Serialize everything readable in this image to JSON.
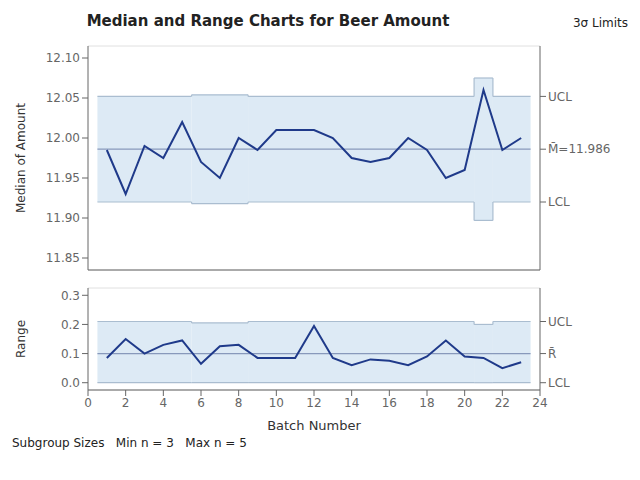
{
  "chart_data": [
    {
      "type": "line",
      "title": "Median and Range Charts for Beer Amount",
      "annotation": "3σ Limits",
      "ylabel": "Median of Amount",
      "x": [
        1,
        2,
        3,
        4,
        5,
        6,
        7,
        8,
        9,
        10,
        11,
        12,
        13,
        14,
        15,
        16,
        17,
        18,
        19,
        20,
        21,
        22,
        23
      ],
      "values": [
        11.985,
        11.93,
        11.99,
        11.975,
        12.02,
        11.97,
        11.95,
        12.0,
        11.985,
        12.01,
        12.01,
        12.01,
        12.0,
        11.975,
        11.97,
        11.975,
        12.0,
        11.985,
        11.95,
        11.96,
        12.06,
        11.985,
        12.0
      ],
      "color": "#1F3A8A",
      "xlim": [
        0,
        24
      ],
      "ylim": [
        11.835,
        12.115
      ],
      "yticks": [
        11.85,
        {
          "value": 11.9,
          "label": "11.90"
        },
        11.95,
        {
          "value": 12,
          "label": "12.00"
        },
        12.05,
        {
          "value": 12.1,
          "label": "12.10"
        }
      ],
      "y2lim": [
        11.835,
        12.115
      ],
      "y2ticks": [
        {
          "value": 12.052,
          "label": "UCL"
        },
        {
          "value": 11.986,
          "label": "M̄=11.986"
        },
        {
          "value": 11.92,
          "label": "LCL"
        }
      ],
      "center": 11.986,
      "center_color": "#8899BB",
      "limits": [
        {
          "x_start": 0.5,
          "x_end": 5.5,
          "ucl": 12.052,
          "lcl": 11.92
        },
        {
          "x_start": 5.5,
          "x_end": 8.5,
          "ucl": 12.054,
          "lcl": 11.918
        },
        {
          "x_start": 8.5,
          "x_end": 20.5,
          "ucl": 12.052,
          "lcl": 11.92
        },
        {
          "x_start": 20.5,
          "x_end": 21.5,
          "ucl": 12.075,
          "lcl": 11.897
        },
        {
          "x_start": 21.5,
          "x_end": 23.5,
          "ucl": 12.052,
          "lcl": 11.92
        }
      ],
      "limit_color": "#AABDD0",
      "fill_color": "#DDEAF5",
      "grid": "y",
      "tick_labels": "y"
    },
    {
      "type": "line",
      "annotation": "Subgroup Sizes   Min n = 3   Max n = 5",
      "xlabel": "Batch Number",
      "ylabel": "Range",
      "x": [
        1,
        2,
        3,
        4,
        5,
        6,
        7,
        8,
        9,
        10,
        11,
        12,
        13,
        14,
        15,
        16,
        17,
        18,
        19,
        20,
        21,
        22,
        23
      ],
      "values": [
        0.085,
        0.15,
        0.1,
        0.13,
        0.145,
        0.065,
        0.125,
        0.13,
        0.085,
        0.085,
        0.085,
        0.195,
        0.085,
        0.06,
        0.08,
        0.075,
        0.06,
        0.09,
        0.145,
        0.09,
        0.085,
        0.05,
        0.07
      ],
      "color": "#1F3A8A",
      "xlim": [
        0,
        24
      ],
      "xticks": [
        0,
        2,
        4,
        6,
        8,
        10,
        12,
        14,
        16,
        18,
        20,
        22,
        24
      ],
      "ylim": [
        -0.025,
        0.325
      ],
      "yticks": [
        {
          "value": 0,
          "label": "0.0"
        },
        0.1,
        0.2,
        0.3
      ],
      "y2lim": [
        -0.025,
        0.325
      ],
      "y2ticks": [
        {
          "value": 0.21,
          "label": "UCL"
        },
        {
          "value": 0.1,
          "label": "R̄"
        },
        {
          "value": 0,
          "label": "LCL"
        }
      ],
      "center": 0.1,
      "center_color": "#8899BB",
      "limits": [
        {
          "x_start": 0.5,
          "x_end": 5.5,
          "ucl": 0.21,
          "lcl": 0.0
        },
        {
          "x_start": 5.5,
          "x_end": 8.5,
          "ucl": 0.205,
          "lcl": 0.0
        },
        {
          "x_start": 8.5,
          "x_end": 20.5,
          "ucl": 0.21,
          "lcl": 0.0
        },
        {
          "x_start": 20.5,
          "x_end": 21.5,
          "ucl": 0.2,
          "lcl": 0.0
        },
        {
          "x_start": 21.5,
          "x_end": 23.5,
          "ucl": 0.21,
          "lcl": 0.0
        }
      ],
      "limit_color": "#AABDD0",
      "fill_color": "#DDEAF5",
      "grid": "y"
    }
  ]
}
